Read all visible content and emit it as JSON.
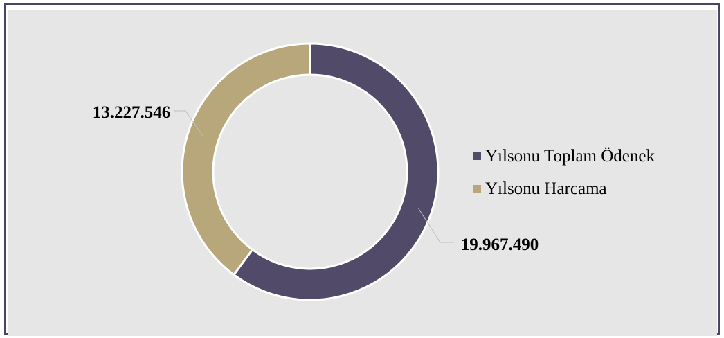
{
  "chart_data": {
    "type": "pie",
    "variant": "donut",
    "legend_position": "right",
    "series": [
      {
        "name": "Yılsonu Toplam Ödenek",
        "value": 19967490,
        "label": "19.967.490",
        "color": "#514a68"
      },
      {
        "name": "Yılsonu Harcama",
        "value": 13227546,
        "label": "13.227.546",
        "color": "#b8a77a"
      }
    ],
    "background_color": "#e6e6e6",
    "border_color": "#4a4560"
  }
}
